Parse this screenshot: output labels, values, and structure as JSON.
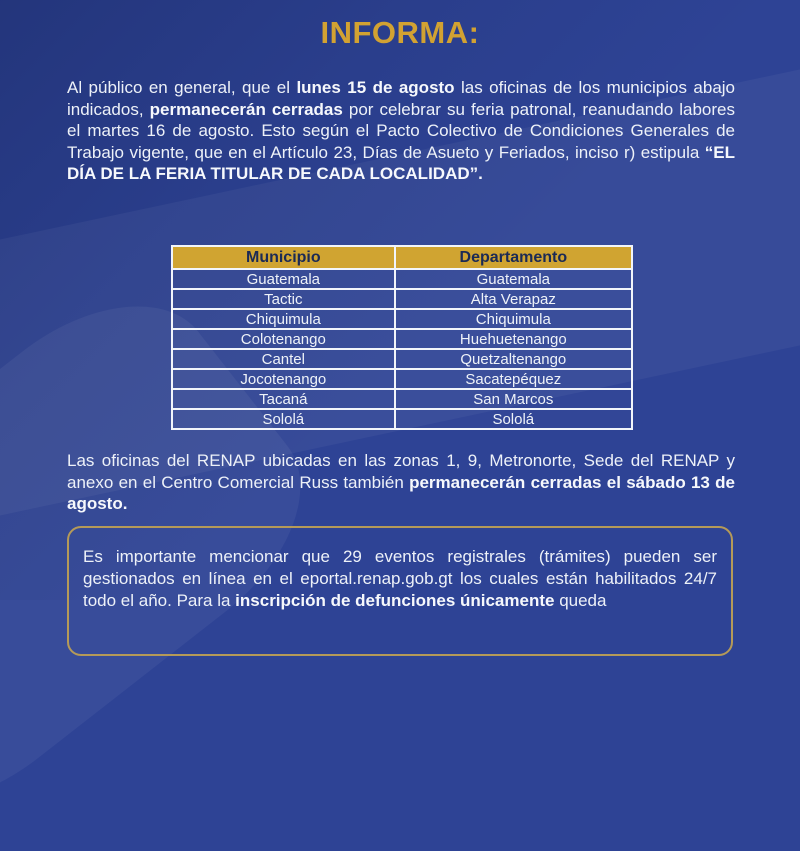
{
  "colors": {
    "background_blue": "#2e4395",
    "accent_gold": "#D2A232",
    "table_header_gold": "#D0A431",
    "table_header_text": "#1B2A55",
    "body_text": "#EDF1F8",
    "table_border": "#F2F5FA",
    "note_box_border": "#B59A58"
  },
  "header": {
    "title": "INFORMA:"
  },
  "intro": {
    "part1": "Al público en general, que el ",
    "bold1": "lunes 15 de agosto",
    "part2": " las oficinas de los municipios abajo indicados, ",
    "bold2": "permanecerán cerradas",
    "part3": " por celebrar su feria patronal, reanudando labores el martes 16 de agosto. Esto según el Pacto Colectivo de Condiciones Generales de Trabajo vigente, que en el Artículo 23, Días de Asueto y Feriados, inciso r) estipula ",
    "bold3": "“EL DÍA DE LA FERIA TITULAR DE CADA LOCALIDAD”."
  },
  "closures_table": {
    "headers": [
      "Municipio",
      "Departamento"
    ],
    "rows": [
      [
        "Guatemala",
        "Guatemala"
      ],
      [
        "Tactic",
        "Alta Verapaz"
      ],
      [
        "Chiquimula",
        "Chiquimula"
      ],
      [
        "Colotenango",
        "Huehuetenango"
      ],
      [
        "Cantel",
        "Quetzaltenango"
      ],
      [
        "Jocotenango",
        "Sacatepéquez"
      ],
      [
        "Tacaná",
        "San Marcos"
      ],
      [
        "Sololá",
        "Sololá"
      ]
    ]
  },
  "renap_note": {
    "part1": "Las oficinas del RENAP ubicadas en las zonas 1, 9, Metronorte, Sede del RENAP y anexo en el Centro Comercial Russ también ",
    "bold1": "permanecerán cerradas el sábado 13 de agosto."
  },
  "eportal_note": {
    "part1": "Es importante mencionar que 29 eventos registrales (trámites) pueden ser gestionados en línea en el eportal.renap.gob.gt los cuales están habilitados 24/7 todo el año. Para la ",
    "bold1": "inscripción de defunciones únicamente",
    "part2": " queda"
  }
}
